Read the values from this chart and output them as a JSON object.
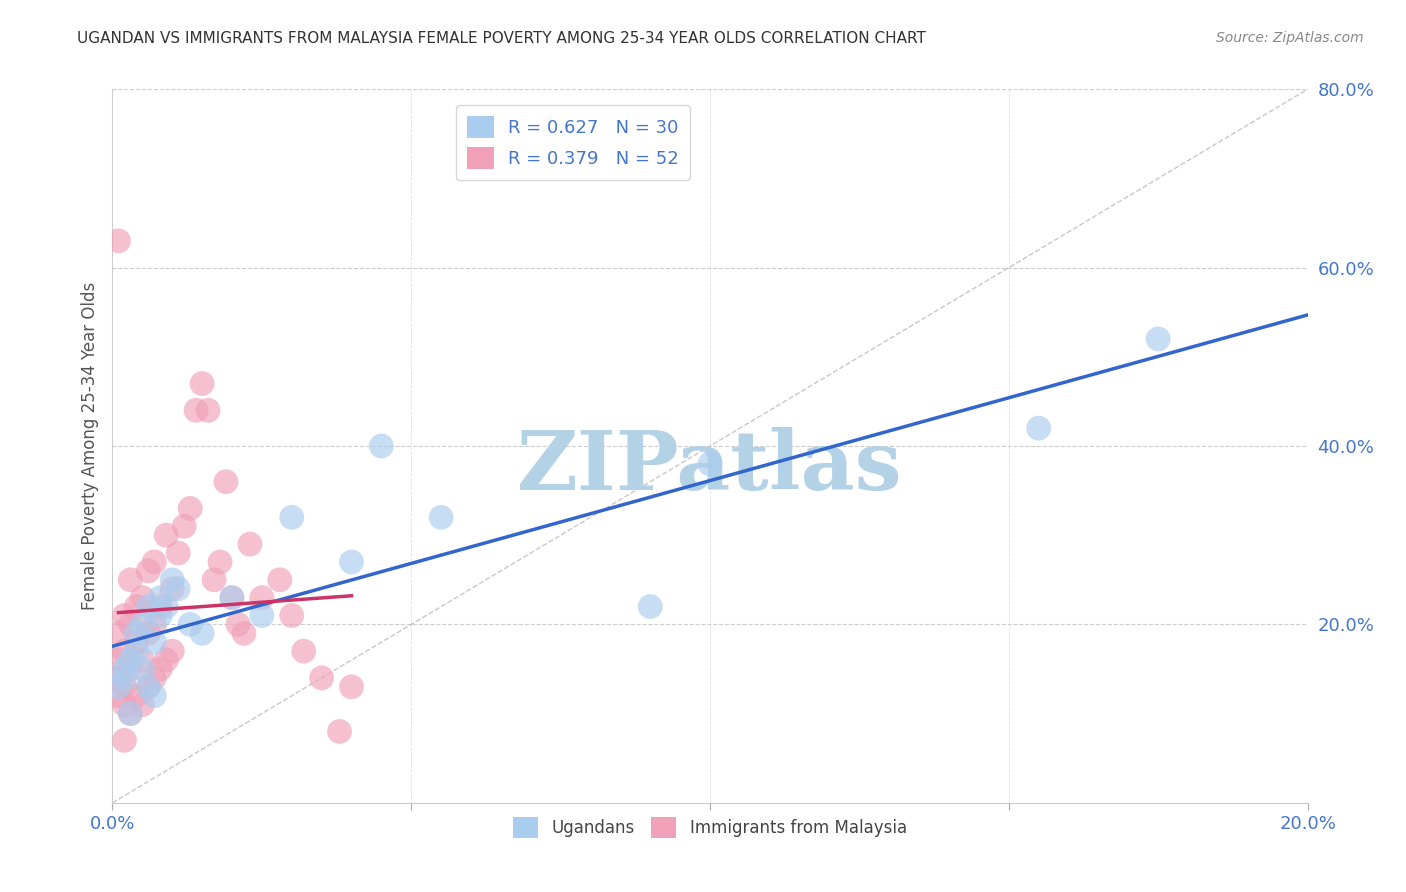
{
  "title": "UGANDAN VS IMMIGRANTS FROM MALAYSIA FEMALE POVERTY AMONG 25-34 YEAR OLDS CORRELATION CHART",
  "source": "Source: ZipAtlas.com",
  "ylabel": "Female Poverty Among 25-34 Year Olds",
  "xlim": [
    0.0,
    0.2
  ],
  "ylim": [
    0.0,
    0.8
  ],
  "xticks": [
    0.0,
    0.05,
    0.1,
    0.15,
    0.2
  ],
  "xtick_labels": [
    "0.0%",
    "",
    "",
    "",
    "20.0%"
  ],
  "yticks_right": [
    0.0,
    0.2,
    0.4,
    0.6,
    0.8
  ],
  "ytick_labels_right": [
    "",
    "20.0%",
    "40.0%",
    "60.0%",
    "80.0%"
  ],
  "ugandan_R": 0.627,
  "ugandan_N": 30,
  "malaysia_R": 0.379,
  "malaysia_N": 52,
  "ugandan_color": "#aaccee",
  "malaysia_color": "#f0a0b8",
  "ugandan_line_color": "#3366cc",
  "malaysia_line_color": "#cc3366",
  "watermark": "ZIPatlas",
  "watermark_color_r": 180,
  "watermark_color_g": 210,
  "watermark_color_b": 230,
  "background_color": "#ffffff",
  "grid_color": "#cccccc",
  "title_color": "#333333",
  "axis_label_color": "#555555",
  "tick_label_color": "#4477cc",
  "ugandan_x": [
    0.001,
    0.002,
    0.002,
    0.003,
    0.003,
    0.004,
    0.004,
    0.005,
    0.005,
    0.006,
    0.006,
    0.007,
    0.007,
    0.008,
    0.008,
    0.009,
    0.01,
    0.011,
    0.013,
    0.015,
    0.02,
    0.025,
    0.03,
    0.04,
    0.045,
    0.055,
    0.09,
    0.1,
    0.155,
    0.175
  ],
  "ugandan_y": [
    0.13,
    0.14,
    0.15,
    0.16,
    0.1,
    0.17,
    0.19,
    0.15,
    0.2,
    0.13,
    0.22,
    0.12,
    0.18,
    0.21,
    0.23,
    0.22,
    0.25,
    0.24,
    0.2,
    0.19,
    0.23,
    0.21,
    0.32,
    0.27,
    0.4,
    0.32,
    0.22,
    0.38,
    0.42,
    0.52
  ],
  "malaysia_x": [
    0.001,
    0.001,
    0.001,
    0.001,
    0.002,
    0.002,
    0.002,
    0.002,
    0.003,
    0.003,
    0.003,
    0.003,
    0.004,
    0.004,
    0.004,
    0.005,
    0.005,
    0.005,
    0.006,
    0.006,
    0.006,
    0.007,
    0.007,
    0.007,
    0.008,
    0.008,
    0.009,
    0.009,
    0.01,
    0.01,
    0.011,
    0.012,
    0.013,
    0.014,
    0.015,
    0.016,
    0.017,
    0.018,
    0.019,
    0.02,
    0.021,
    0.022,
    0.023,
    0.025,
    0.028,
    0.03,
    0.032,
    0.035,
    0.038,
    0.04,
    0.001,
    0.002
  ],
  "malaysia_y": [
    0.12,
    0.14,
    0.16,
    0.19,
    0.11,
    0.13,
    0.17,
    0.21,
    0.1,
    0.15,
    0.2,
    0.25,
    0.12,
    0.18,
    0.22,
    0.11,
    0.16,
    0.23,
    0.13,
    0.19,
    0.26,
    0.14,
    0.2,
    0.27,
    0.15,
    0.22,
    0.16,
    0.3,
    0.17,
    0.24,
    0.28,
    0.31,
    0.33,
    0.44,
    0.47,
    0.44,
    0.25,
    0.27,
    0.36,
    0.23,
    0.2,
    0.19,
    0.29,
    0.23,
    0.25,
    0.21,
    0.17,
    0.14,
    0.08,
    0.13,
    0.63,
    0.07
  ],
  "ugandan_line_x": [
    0.0,
    0.2
  ],
  "ugandan_line_y": [
    0.155,
    0.54
  ],
  "malaysia_line_x": [
    0.001,
    0.04
  ],
  "malaysia_line_y": [
    0.25,
    0.32
  ]
}
